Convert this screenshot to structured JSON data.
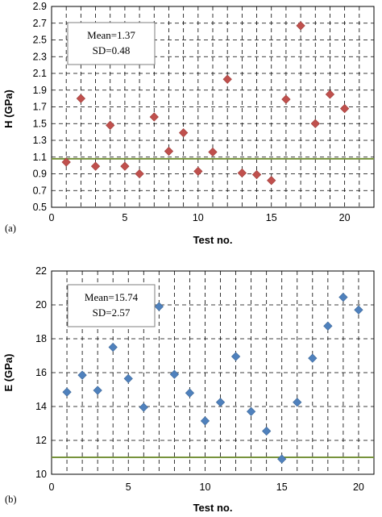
{
  "chart_data": [
    {
      "type": "scatter",
      "panel_label": "(a)",
      "xlabel": "Test no.",
      "ylabel": "H (GPa)",
      "xlim": [
        0,
        22
      ],
      "ylim": [
        0.5,
        2.9
      ],
      "xticks": [
        "0",
        "5",
        "10",
        "15",
        "20"
      ],
      "yticks": [
        "0.5",
        "0.7",
        "0.9",
        "1.1",
        "1.3",
        "1.5",
        "1.7",
        "1.9",
        "2.1",
        "2.3",
        "2.5",
        "2.7",
        "2.9"
      ],
      "grid": "dashed",
      "annotation": [
        "Mean=1.37",
        "SD=0.48"
      ],
      "reference_line_y": 1.08,
      "marker_color": "#c0504d",
      "line_color": "#77933c",
      "series": [
        {
          "x": [
            1,
            2,
            3,
            4,
            5,
            6,
            7,
            8,
            9,
            10,
            11,
            12,
            13,
            14,
            15,
            16,
            17,
            18,
            19,
            20
          ],
          "y": [
            1.04,
            1.8,
            0.99,
            1.48,
            0.99,
            0.9,
            1.58,
            1.17,
            1.39,
            0.93,
            1.16,
            2.03,
            0.91,
            0.89,
            0.82,
            1.79,
            2.67,
            1.5,
            1.85,
            1.68
          ]
        }
      ]
    },
    {
      "type": "scatter",
      "panel_label": "(b)",
      "xlabel": "Test no.",
      "ylabel": "E (GPa)",
      "xlim": [
        0,
        21
      ],
      "ylim": [
        10,
        22
      ],
      "xticks": [
        "0",
        "5",
        "10",
        "15",
        "20"
      ],
      "yticks": [
        "10",
        "12",
        "14",
        "16",
        "18",
        "20",
        "22"
      ],
      "grid": "dashed",
      "annotation": [
        "Mean=15.74",
        "SD=2.57"
      ],
      "reference_line_y": 11.0,
      "marker_color": "#4f81bd",
      "line_color": "#77933c",
      "series": [
        {
          "x": [
            1,
            2,
            3,
            4,
            5,
            6,
            7,
            8,
            9,
            10,
            11,
            12,
            13,
            14,
            15,
            16,
            17,
            18,
            19,
            20
          ],
          "y": [
            14.85,
            15.85,
            14.95,
            17.5,
            15.65,
            13.95,
            19.9,
            15.9,
            14.8,
            13.15,
            14.25,
            16.95,
            13.7,
            12.55,
            10.9,
            14.25,
            16.85,
            18.75,
            20.45,
            19.7
          ]
        }
      ]
    }
  ]
}
